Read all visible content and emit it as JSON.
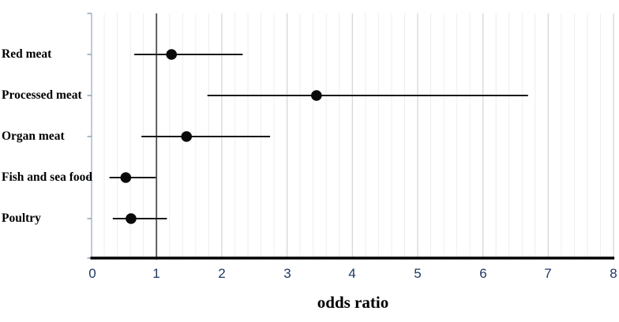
{
  "chart_data": {
    "type": "scatter",
    "variant": "forest-plot",
    "title": "",
    "xlabel": "odds ratio",
    "ylabel": "",
    "categories": [
      "Red meat",
      "Processed meat",
      "Organ meat",
      "Fish and sea food",
      "Poultry"
    ],
    "points": [
      {
        "label": "Red meat",
        "odds_ratio": 1.23,
        "ci_low": 0.66,
        "ci_high": 2.32
      },
      {
        "label": "Processed meat",
        "odds_ratio": 3.45,
        "ci_low": 1.78,
        "ci_high": 6.69
      },
      {
        "label": "Organ meat",
        "odds_ratio": 1.46,
        "ci_low": 0.77,
        "ci_high": 2.74
      },
      {
        "label": "Fish and sea food",
        "odds_ratio": 0.53,
        "ci_low": 0.28,
        "ci_high": 0.99
      },
      {
        "label": "Poultry",
        "odds_ratio": 0.61,
        "ci_low": 0.33,
        "ci_high": 1.16
      }
    ],
    "x_ticks": [
      "0",
      "1",
      "2",
      "3",
      "4",
      "5",
      "6",
      "7",
      "8"
    ],
    "xlim": [
      0,
      8
    ],
    "minor_grid_step": 0.2,
    "major_grid_step": 1,
    "reference_line_x": 1,
    "grid": true,
    "legend": false,
    "colors": {
      "point": "#0a0a0a",
      "ci_line": "#1a1a1a",
      "reference_line": "#4f4f4f",
      "bottom_axis": "#000000",
      "left_axis": "#aab8cf",
      "left_axis_tick": "#8da3bd",
      "major_grid": "#d4d4d4",
      "minor_grid": "#eeeeee",
      "tick_label": "#1f3864",
      "category_label": "#000000"
    }
  }
}
